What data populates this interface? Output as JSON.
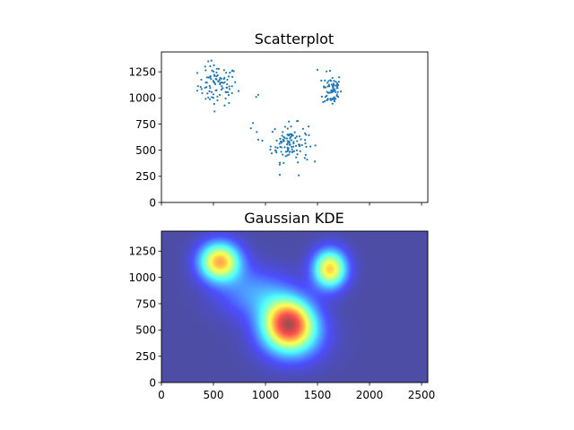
{
  "chart_data": [
    {
      "type": "scatter",
      "title": "Scatterplot",
      "xlim": [
        0,
        2560
      ],
      "ylim": [
        0,
        1440
      ],
      "x_ticks": [
        0,
        500,
        1000,
        1500,
        2000,
        2500
      ],
      "y_ticks": [
        0,
        250,
        500,
        750,
        1000,
        1250
      ],
      "x_tick_labels_shown": false,
      "point_color": "#1f77b4",
      "clusters": [
        {
          "center": [
            540,
            1120
          ],
          "spread": [
            95,
            95
          ],
          "count": 95
        },
        {
          "center": [
            1640,
            1080
          ],
          "spread": [
            45,
            80
          ],
          "count": 70
        },
        {
          "center": [
            1230,
            570
          ],
          "spread": [
            90,
            90
          ],
          "count": 110
        }
      ],
      "outliers": [
        [
          930,
          1030
        ],
        [
          910,
          1010
        ],
        [
          880,
          760
        ],
        [
          860,
          710
        ],
        [
          930,
          600
        ],
        [
          1060,
          470
        ],
        [
          1320,
          260
        ],
        [
          1400,
          410
        ],
        [
          450,
          1350
        ],
        [
          420,
          1300
        ],
        [
          1500,
          1270
        ],
        [
          1620,
          1260
        ]
      ]
    },
    {
      "type": "heatmap",
      "title": "Gaussian KDE",
      "xlim": [
        0,
        2560
      ],
      "ylim": [
        0,
        1440
      ],
      "x_ticks": [
        0,
        500,
        1000,
        1500,
        2000,
        2500
      ],
      "y_ticks": [
        0,
        250,
        500,
        750,
        1000,
        1250
      ],
      "colormap": "jet",
      "alpha": 0.7,
      "peaks": [
        {
          "center": [
            560,
            1150
          ],
          "spread": [
            140,
            130
          ],
          "weight": 0.95
        },
        {
          "center": [
            1620,
            1080
          ],
          "spread": [
            115,
            130
          ],
          "weight": 0.9
        },
        {
          "center": [
            1220,
            580
          ],
          "spread": [
            170,
            160
          ],
          "weight": 1.0
        },
        {
          "center": [
            900,
            850
          ],
          "spread": [
            250,
            170
          ],
          "weight": 0.3
        },
        {
          "center": [
            1260,
            420
          ],
          "spread": [
            220,
            170
          ],
          "weight": 0.4
        }
      ]
    }
  ]
}
